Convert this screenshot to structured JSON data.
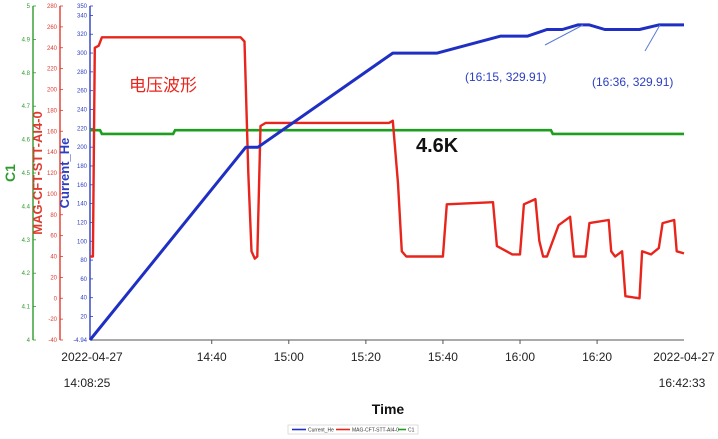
{
  "chart_data": {
    "type": "line",
    "xlabel": "Time",
    "x_start_label": [
      "2022-04-27",
      "14:08:25"
    ],
    "x_end_label": [
      "2022-04-27",
      "16:42:33"
    ],
    "x_range": [
      "14:08:25",
      "16:42:33"
    ],
    "x_ticks": [
      "14:40",
      "15:00",
      "15:20",
      "15:40",
      "16:00",
      "16:20"
    ],
    "axes": {
      "green": {
        "label": "C1",
        "ylim": [
          4,
          5
        ],
        "ticks": [
          "4",
          "4.1",
          "4.2",
          "4.3",
          "4.4",
          "4.5",
          "4.6",
          "4.7",
          "4.8",
          "4.9",
          "5"
        ]
      },
      "red": {
        "label": "MAG-CFT-STT-AI4-0",
        "ylim": [
          -40,
          280
        ],
        "ticks": [
          "-40",
          "-20",
          "0",
          "20",
          "40",
          "60",
          "80",
          "100",
          "120",
          "140",
          "160",
          "180",
          "200",
          "220",
          "240",
          "260",
          "280"
        ]
      },
      "blue": {
        "label": "Current_He",
        "ylim": [
          -4.94,
          350
        ],
        "ticks": [
          "-4.94",
          "20",
          "40",
          "60",
          "80",
          "100",
          "120",
          "140",
          "160",
          "180",
          "200",
          "220",
          "240",
          "260",
          "280",
          "300",
          "320",
          "340",
          "350"
        ]
      }
    },
    "series": [
      {
        "name": "Current_He",
        "axis": "blue",
        "color": "#1f2fc4",
        "points": [
          [
            "14:08:25",
            -4.94
          ],
          [
            "14:48:50",
            200
          ],
          [
            "14:52:00",
            200
          ],
          [
            "15:27:00",
            300
          ],
          [
            "15:38:30",
            300
          ],
          [
            "15:55:00",
            318
          ],
          [
            "16:02:00",
            318
          ],
          [
            "16:07:00",
            325
          ],
          [
            "16:11:00",
            325
          ],
          [
            "16:15:00",
            329.91
          ],
          [
            "16:18:00",
            329.91
          ],
          [
            "16:22:00",
            325
          ],
          [
            "16:31:00",
            325
          ],
          [
            "16:36:00",
            329.91
          ],
          [
            "16:42:33",
            329.91
          ]
        ]
      },
      {
        "name": "MAG-CFT-STT-AI4-0",
        "axis": "red",
        "color": "#e8251c",
        "points": [
          [
            "14:08:25",
            40
          ],
          [
            "14:09:10",
            40
          ],
          [
            "14:09:40",
            240
          ],
          [
            "14:10:40",
            242
          ],
          [
            "14:11:30",
            250
          ],
          [
            "14:13:00",
            250
          ],
          [
            "14:47:30",
            250
          ],
          [
            "14:48:30",
            246
          ],
          [
            "14:49:30",
            120
          ],
          [
            "14:50:20",
            45
          ],
          [
            "14:51:10",
            38
          ],
          [
            "14:51:50",
            40
          ],
          [
            "14:52:40",
            165
          ],
          [
            "14:54:00",
            168
          ],
          [
            "15:26:00",
            168
          ],
          [
            "15:27:00",
            170
          ],
          [
            "15:28:20",
            110
          ],
          [
            "15:29:20",
            45
          ],
          [
            "15:30:30",
            40
          ],
          [
            "15:40:00",
            40
          ],
          [
            "15:41:00",
            90
          ],
          [
            "15:53:00",
            92
          ],
          [
            "15:54:00",
            50
          ],
          [
            "15:58:00",
            42
          ],
          [
            "16:00:00",
            42
          ],
          [
            "16:01:00",
            90
          ],
          [
            "16:04:00",
            95
          ],
          [
            "16:05:00",
            55
          ],
          [
            "16:06:00",
            40
          ],
          [
            "16:07:00",
            40
          ],
          [
            "16:10:00",
            70
          ],
          [
            "16:13:00",
            78
          ],
          [
            "16:14:00",
            40
          ],
          [
            "16:17:00",
            40
          ],
          [
            "16:18:00",
            72
          ],
          [
            "16:23:00",
            75
          ],
          [
            "16:23:40",
            45
          ],
          [
            "16:24:40",
            40
          ],
          [
            "16:26:30",
            45
          ],
          [
            "16:27:20",
            2
          ],
          [
            "16:31:00",
            0
          ],
          [
            "16:31:40",
            45
          ],
          [
            "16:34:00",
            42
          ],
          [
            "16:36:00",
            48
          ],
          [
            "16:37:00",
            72
          ],
          [
            "16:40:00",
            75
          ],
          [
            "16:40:40",
            45
          ],
          [
            "16:42:33",
            43
          ]
        ]
      },
      {
        "name": "C1",
        "axis": "green",
        "color": "#1e9e1e",
        "points": [
          [
            "14:08:25",
            4.628
          ],
          [
            "14:11:00",
            4.628
          ],
          [
            "14:11:30",
            4.617
          ],
          [
            "14:30:00",
            4.617
          ],
          [
            "14:30:30",
            4.628
          ],
          [
            "16:08:00",
            4.628
          ],
          [
            "16:08:30",
            4.617
          ],
          [
            "16:42:33",
            4.617
          ]
        ]
      }
    ],
    "annotations": [
      {
        "text": "电压波形",
        "color": "#e8251c"
      },
      {
        "text": "4.6K",
        "color": "#111111"
      },
      {
        "text": "(16:15, 329.91)",
        "color": "#2c3ec2"
      },
      {
        "text": "(16:36, 329.91)",
        "color": "#2c3ec2"
      }
    ],
    "legend": {
      "placement": "bottom-center",
      "entries": [
        {
          "label": "Current_He",
          "color": "#1f2fc4"
        },
        {
          "label": "MAG-CFT-STT-AI4-0",
          "color": "#e8251c"
        },
        {
          "label": "C1",
          "color": "#1e9e1e"
        }
      ]
    },
    "grid": false
  }
}
